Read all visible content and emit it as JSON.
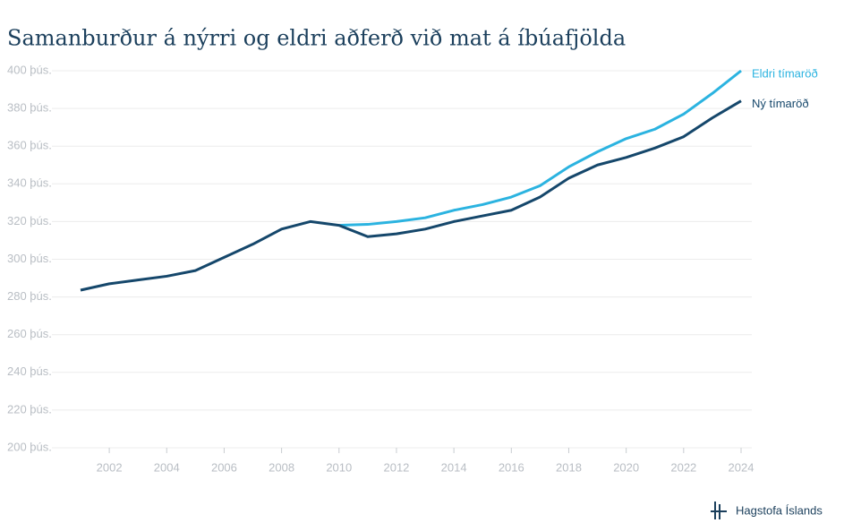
{
  "chart_data": {
    "type": "line",
    "title": "Samanburður á nýrri og eldri aðferð við mat á íbúafjölda",
    "source": "Hagstofa Íslands",
    "x": [
      2001,
      2002,
      2003,
      2004,
      2005,
      2006,
      2007,
      2008,
      2009,
      2010,
      2011,
      2012,
      2013,
      2014,
      2015,
      2016,
      2017,
      2018,
      2019,
      2020,
      2021,
      2022,
      2023,
      2024
    ],
    "series": [
      {
        "name": "Eldri tímaröð",
        "color": "#2bb3e0",
        "values": [
          null,
          null,
          null,
          null,
          null,
          null,
          null,
          null,
          null,
          318,
          318.5,
          320,
          322,
          326,
          329,
          333,
          339,
          349,
          357,
          364,
          369,
          377,
          388,
          400
        ]
      },
      {
        "name": "Ný tímaröð",
        "color": "#15476b",
        "values": [
          283.6,
          287,
          289,
          291,
          294,
          301,
          308,
          316,
          320,
          318,
          312,
          313.5,
          316,
          320,
          323,
          326,
          333,
          343,
          350,
          354,
          359,
          365,
          375,
          384
        ]
      }
    ],
    "xlim": [
      2001,
      2024
    ],
    "xticks": [
      2002,
      2004,
      2006,
      2008,
      2010,
      2012,
      2014,
      2016,
      2018,
      2020,
      2022,
      2024
    ],
    "ylim": [
      200,
      400
    ],
    "yticks": [
      {
        "value": 200,
        "label": "200 þús."
      },
      {
        "value": 220,
        "label": "220 þús."
      },
      {
        "value": 240,
        "label": "240 þús."
      },
      {
        "value": 260,
        "label": "260 þús."
      },
      {
        "value": 280,
        "label": "280 þús."
      },
      {
        "value": 300,
        "label": "300 þús."
      },
      {
        "value": 320,
        "label": "320 þús."
      },
      {
        "value": 340,
        "label": "340 þús."
      },
      {
        "value": 360,
        "label": "360 þús."
      },
      {
        "value": 380,
        "label": "380 þús."
      },
      {
        "value": 400,
        "label": "400 þús."
      }
    ],
    "grid": true
  }
}
